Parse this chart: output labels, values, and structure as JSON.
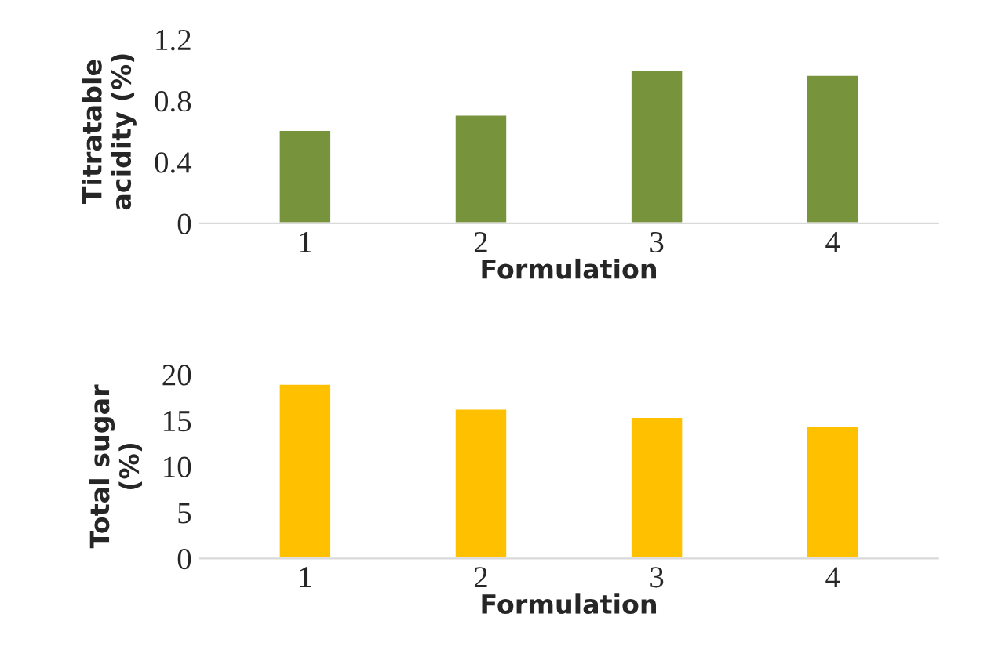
{
  "chart_data": [
    {
      "type": "bar",
      "xlabel": "Formulation",
      "ylabel": "Titratable\nacidity (%)",
      "categories": [
        "1",
        "2",
        "3",
        "4"
      ],
      "values": [
        0.61,
        0.71,
        1.0,
        0.97
      ],
      "color": "#77933c",
      "ylim": [
        0,
        1.2
      ],
      "yticks": [
        0,
        0.4,
        0.8,
        1.2
      ],
      "grid": false
    },
    {
      "type": "bar",
      "xlabel": "Formulation",
      "ylabel": "Total sugar\n(%)",
      "categories": [
        "1",
        "2",
        "3",
        "4"
      ],
      "values": [
        19.0,
        16.3,
        15.4,
        14.4
      ],
      "color": "#ffc000",
      "ylim": [
        0,
        20
      ],
      "yticks": [
        0,
        5,
        10,
        15,
        20
      ],
      "grid": false
    }
  ]
}
